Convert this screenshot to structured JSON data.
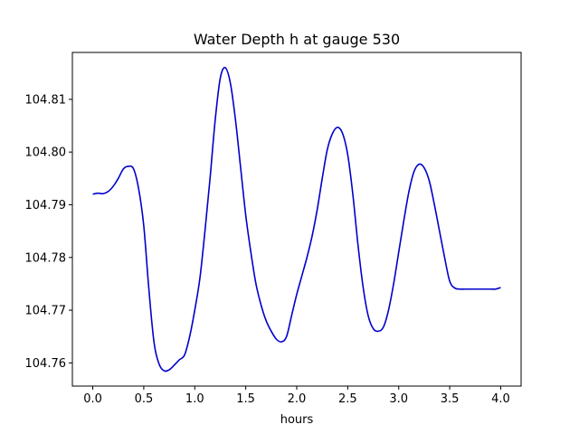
{
  "chart_data": {
    "type": "line",
    "title": "Water Depth h at gauge 530",
    "xlabel": "hours",
    "ylabel": "",
    "xlim": [
      -0.2,
      4.2
    ],
    "ylim": [
      104.7556,
      104.8189
    ],
    "xticks": [
      0.0,
      0.5,
      1.0,
      1.5,
      2.0,
      2.5,
      3.0,
      3.5,
      4.0
    ],
    "xtick_labels": [
      "0.0",
      "0.5",
      "1.0",
      "1.5",
      "2.0",
      "2.5",
      "3.0",
      "3.5",
      "4.0"
    ],
    "yticks": [
      104.76,
      104.77,
      104.78,
      104.79,
      104.8,
      104.81
    ],
    "ytick_labels": [
      "104.76",
      "104.77",
      "104.78",
      "104.79",
      "104.80",
      "104.81"
    ],
    "grid": false,
    "series": [
      {
        "color": "#0000cc",
        "x": [
          0.0,
          0.05,
          0.1,
          0.15,
          0.2,
          0.25,
          0.3,
          0.35,
          0.4,
          0.45,
          0.5,
          0.55,
          0.6,
          0.65,
          0.7,
          0.75,
          0.8,
          0.85,
          0.9,
          0.95,
          1.0,
          1.05,
          1.1,
          1.15,
          1.2,
          1.25,
          1.3,
          1.35,
          1.4,
          1.45,
          1.5,
          1.55,
          1.6,
          1.65,
          1.7,
          1.75,
          1.8,
          1.85,
          1.9,
          1.95,
          2.0,
          2.05,
          2.1,
          2.15,
          2.2,
          2.25,
          2.3,
          2.35,
          2.4,
          2.45,
          2.5,
          2.55,
          2.6,
          2.65,
          2.7,
          2.75,
          2.8,
          2.85,
          2.9,
          2.95,
          3.0,
          3.05,
          3.1,
          3.15,
          3.2,
          3.25,
          3.3,
          3.35,
          3.4,
          3.45,
          3.5,
          3.55,
          3.6,
          3.65,
          3.7,
          3.75,
          3.8,
          3.85,
          3.9,
          3.95,
          4.0
        ],
        "y": [
          104.792,
          104.7922,
          104.7921,
          104.7925,
          104.7935,
          104.795,
          104.7968,
          104.7973,
          104.7968,
          104.793,
          104.786,
          104.774,
          104.764,
          104.7598,
          104.7585,
          104.7587,
          104.7596,
          104.7606,
          104.7615,
          104.765,
          104.77,
          104.776,
          104.785,
          104.795,
          104.806,
          104.814,
          104.816,
          104.813,
          104.806,
          104.797,
          104.788,
          104.781,
          104.775,
          104.771,
          104.768,
          104.766,
          104.7645,
          104.764,
          104.765,
          104.769,
          104.773,
          104.7765,
          104.78,
          104.784,
          104.789,
          104.795,
          104.8005,
          104.8035,
          104.8047,
          104.8035,
          104.7995,
          104.792,
          104.7825,
          104.7745,
          104.769,
          104.7665,
          104.766,
          104.7668,
          104.77,
          104.775,
          104.781,
          104.787,
          104.7925,
          104.7963,
          104.7977,
          104.797,
          104.7945,
          104.79,
          104.785,
          104.78,
          104.7755,
          104.7742,
          104.774,
          104.774,
          104.774,
          104.774,
          104.774,
          104.774,
          104.774,
          104.774,
          104.7743
        ]
      }
    ]
  }
}
